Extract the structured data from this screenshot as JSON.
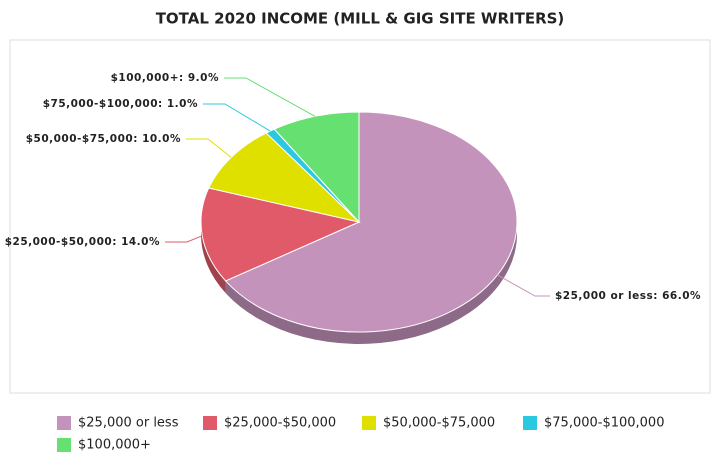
{
  "chart_data": {
    "type": "pie",
    "title": "TOTAL 2020 INCOME (MILL & GIG SITE WRITERS)",
    "categories": [
      "$25,000 or less",
      "$25,000-$50,000",
      "$50,000-$75,000",
      "$75,000-$100,000",
      "$100,000+"
    ],
    "values": [
      66,
      14,
      10,
      1,
      9
    ],
    "value_labels": [
      "$25,000 or less: 66.0%",
      "$25,000-$50,000: 14.0%",
      "$50,000-$75,000: 10.0%",
      "$75,000-$100,000: 1.0%",
      "$100,000+: 9.0%"
    ],
    "colors": [
      "#c493bb",
      "#e05a6a",
      "#e0e000",
      "#2bc9e0",
      "#66e070"
    ],
    "legend": "bottom"
  }
}
